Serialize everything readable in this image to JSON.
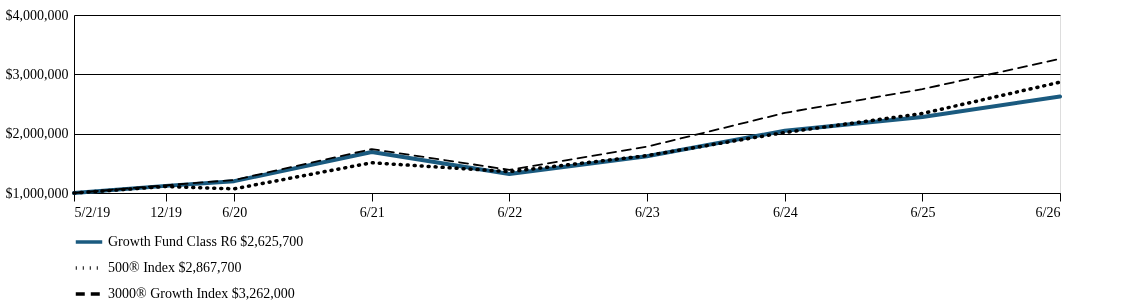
{
  "chart_data": {
    "type": "line",
    "x": [
      "2019-05-02",
      "2019-12-31",
      "2020-06-30",
      "2021-06-30",
      "2022-06-30",
      "2023-06-30",
      "2024-06-30",
      "2025-06-30",
      "2026-06-30"
    ],
    "series": [
      {
        "name": "Growth Fund Class R6 $2,625,700",
        "color": "#1a5a7f",
        "line_style": "solid",
        "values": [
          1000000,
          1120000,
          1200000,
          1690000,
          1320000,
          1620000,
          2050000,
          2280000,
          2625700
        ]
      },
      {
        "name": "500® Index $2,867,700",
        "color": "#000000",
        "line_style": "dotted",
        "values": [
          1000000,
          1110000,
          1070000,
          1510000,
          1360000,
          1630000,
          2020000,
          2340000,
          2867700
        ]
      },
      {
        "name": "3000® Growth Index $3,262,000",
        "color": "#000000",
        "line_style": "dashed",
        "values": [
          1000000,
          1130000,
          1220000,
          1740000,
          1390000,
          1780000,
          2350000,
          2750000,
          3262000
        ]
      }
    ],
    "xlim": [
      "2019-05-02",
      "2026-06-30"
    ],
    "xticks": [
      {
        "value": "2019-05-02",
        "label": "5/2/19"
      },
      {
        "value": "2019-12-31",
        "label": "12/19"
      },
      {
        "value": "2020-06-30",
        "label": "6/20"
      },
      {
        "value": "2021-06-30",
        "label": "6/21"
      },
      {
        "value": "2022-06-30",
        "label": "6/22"
      },
      {
        "value": "2023-06-30",
        "label": "6/23"
      },
      {
        "value": "2024-06-30",
        "label": "6/24"
      },
      {
        "value": "2025-06-30",
        "label": "6/25"
      },
      {
        "value": "2026-06-30",
        "label": "6/26"
      }
    ],
    "ylim": [
      1000000,
      4000000
    ],
    "yticks": [
      {
        "value": 1000000,
        "label": "$1,000,000"
      },
      {
        "value": 2000000,
        "label": "$2,000,000"
      },
      {
        "value": 3000000,
        "label": "$3,000,000"
      },
      {
        "value": 4000000,
        "label": "$4,000,000"
      }
    ],
    "grid": "y",
    "legend": "bottom left",
    "marker": "none"
  }
}
